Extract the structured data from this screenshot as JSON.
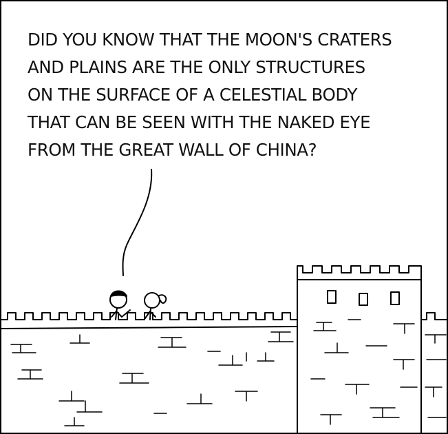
{
  "comic": {
    "caption_lines": [
      "Did you know that the moon's craters",
      "and plains are the only structures",
      "on the surface of a celestial body",
      "that can be seen with the naked eye",
      "from the Great Wall of China?"
    ]
  },
  "characters": [
    "stick-figure-speaker",
    "stick-figure-ponytail"
  ],
  "colors": {
    "ink": "#000000",
    "background": "#ffffff"
  }
}
